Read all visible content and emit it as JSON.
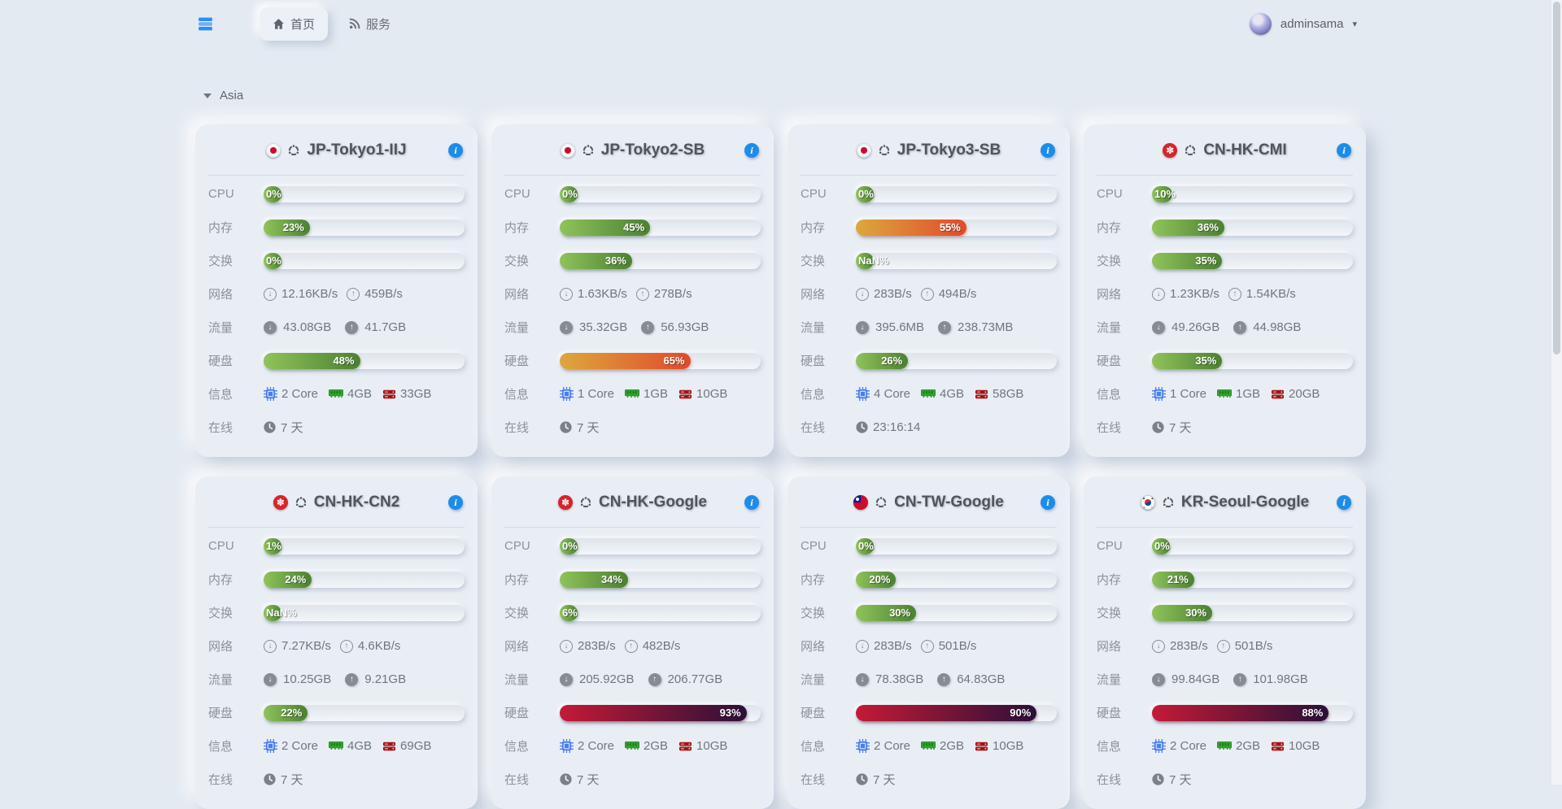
{
  "navbar": {
    "logo_icon": "server-stack-icon",
    "tabs": [
      {
        "label": "首页",
        "icon": "home-icon",
        "active": true
      },
      {
        "label": "服务",
        "icon": "rss-icon",
        "active": false
      }
    ],
    "user": {
      "name": "adminsama",
      "avatar_icon": "avatar",
      "caret_icon": "chevron-down-icon"
    }
  },
  "group": {
    "label": "Asia",
    "collapse_icon": "triangle-down-icon"
  },
  "row_labels": {
    "cpu": "CPU",
    "memory": "内存",
    "swap": "交换",
    "network": "网络",
    "traffic": "流量",
    "disk": "硬盘",
    "info": "信息",
    "online": "在线"
  },
  "colors": {
    "background": "#e4eaf2",
    "card": "#e9eef5",
    "bar_green": [
      "#90c35a",
      "#4c8033"
    ],
    "bar_orange": [
      "#dca83e",
      "#e1492c"
    ],
    "bar_red": [
      "#c41a36",
      "#2b1038"
    ],
    "info_button_blue": "#1d8ce8",
    "cpu_chip_blue": "#4a7df0",
    "ram_icon_green": "#34a832",
    "disk_icon_red": "#a31416",
    "logo_blue": "#2f8ef5"
  },
  "servers": [
    {
      "name": "JP-Tokyo1-IIJ",
      "flag": "jp",
      "os_icon": "ubuntu-icon",
      "cpu": {
        "label": "0%",
        "pct": 0,
        "level": "green"
      },
      "memory": {
        "label": "23%",
        "pct": 23,
        "level": "green"
      },
      "swap": {
        "label": "0%",
        "pct": 0,
        "level": "green"
      },
      "network": {
        "down": "12.16KB/s",
        "up": "459B/s"
      },
      "traffic": {
        "down": "43.08GB",
        "up": "41.7GB"
      },
      "disk": {
        "label": "48%",
        "pct": 48,
        "level": "green"
      },
      "info": {
        "cores": "2 Core",
        "ram": "4GB",
        "disk": "33GB"
      },
      "online": "7 天"
    },
    {
      "name": "JP-Tokyo2-SB",
      "flag": "jp",
      "os_icon": "ubuntu-icon",
      "cpu": {
        "label": "0%",
        "pct": 0,
        "level": "green"
      },
      "memory": {
        "label": "45%",
        "pct": 45,
        "level": "green"
      },
      "swap": {
        "label": "36%",
        "pct": 36,
        "level": "green"
      },
      "network": {
        "down": "1.63KB/s",
        "up": "278B/s"
      },
      "traffic": {
        "down": "35.32GB",
        "up": "56.93GB"
      },
      "disk": {
        "label": "65%",
        "pct": 65,
        "level": "orange"
      },
      "info": {
        "cores": "1 Core",
        "ram": "1GB",
        "disk": "10GB"
      },
      "online": "7 天"
    },
    {
      "name": "JP-Tokyo3-SB",
      "flag": "jp",
      "os_icon": "ubuntu-icon",
      "cpu": {
        "label": "0%",
        "pct": 0,
        "level": "green"
      },
      "memory": {
        "label": "55%",
        "pct": 55,
        "level": "orange"
      },
      "swap": {
        "label": "NaN%",
        "pct": null,
        "level": "green"
      },
      "network": {
        "down": "283B/s",
        "up": "494B/s"
      },
      "traffic": {
        "down": "395.6MB",
        "up": "238.73MB"
      },
      "disk": {
        "label": "26%",
        "pct": 26,
        "level": "green"
      },
      "info": {
        "cores": "4 Core",
        "ram": "4GB",
        "disk": "58GB"
      },
      "online": "23:16:14"
    },
    {
      "name": "CN-HK-CMI",
      "flag": "hk",
      "os_icon": "ubuntu-icon",
      "cpu": {
        "label": "10%",
        "pct": 10,
        "level": "green"
      },
      "memory": {
        "label": "36%",
        "pct": 36,
        "level": "green"
      },
      "swap": {
        "label": "35%",
        "pct": 35,
        "level": "green"
      },
      "network": {
        "down": "1.23KB/s",
        "up": "1.54KB/s"
      },
      "traffic": {
        "down": "49.26GB",
        "up": "44.98GB"
      },
      "disk": {
        "label": "35%",
        "pct": 35,
        "level": "green"
      },
      "info": {
        "cores": "1 Core",
        "ram": "1GB",
        "disk": "20GB"
      },
      "online": "7 天"
    },
    {
      "name": "CN-HK-CN2",
      "flag": "hk",
      "os_icon": "ubuntu-icon",
      "cpu": {
        "label": "1%",
        "pct": 1,
        "level": "green"
      },
      "memory": {
        "label": "24%",
        "pct": 24,
        "level": "green"
      },
      "swap": {
        "label": "NaN%",
        "pct": null,
        "level": "green"
      },
      "network": {
        "down": "7.27KB/s",
        "up": "4.6KB/s"
      },
      "traffic": {
        "down": "10.25GB",
        "up": "9.21GB"
      },
      "disk": {
        "label": "22%",
        "pct": 22,
        "level": "green"
      },
      "info": {
        "cores": "2 Core",
        "ram": "4GB",
        "disk": "69GB"
      },
      "online": "7 天"
    },
    {
      "name": "CN-HK-Google",
      "flag": "hk",
      "os_icon": "ubuntu-icon",
      "cpu": {
        "label": "0%",
        "pct": 0,
        "level": "green"
      },
      "memory": {
        "label": "34%",
        "pct": 34,
        "level": "green"
      },
      "swap": {
        "label": "6%",
        "pct": 6,
        "level": "green"
      },
      "network": {
        "down": "283B/s",
        "up": "482B/s"
      },
      "traffic": {
        "down": "205.92GB",
        "up": "206.77GB"
      },
      "disk": {
        "label": "93%",
        "pct": 93,
        "level": "red"
      },
      "info": {
        "cores": "2 Core",
        "ram": "2GB",
        "disk": "10GB"
      },
      "online": "7 天"
    },
    {
      "name": "CN-TW-Google",
      "flag": "tw",
      "os_icon": "ubuntu-icon",
      "cpu": {
        "label": "0%",
        "pct": 0,
        "level": "green"
      },
      "memory": {
        "label": "20%",
        "pct": 20,
        "level": "green"
      },
      "swap": {
        "label": "30%",
        "pct": 30,
        "level": "green"
      },
      "network": {
        "down": "283B/s",
        "up": "501B/s"
      },
      "traffic": {
        "down": "78.38GB",
        "up": "64.83GB"
      },
      "disk": {
        "label": "90%",
        "pct": 90,
        "level": "red"
      },
      "info": {
        "cores": "2 Core",
        "ram": "2GB",
        "disk": "10GB"
      },
      "online": "7 天"
    },
    {
      "name": "KR-Seoul-Google",
      "flag": "kr",
      "os_icon": "ubuntu-icon",
      "cpu": {
        "label": "0%",
        "pct": 0,
        "level": "green"
      },
      "memory": {
        "label": "21%",
        "pct": 21,
        "level": "green"
      },
      "swap": {
        "label": "30%",
        "pct": 30,
        "level": "green"
      },
      "network": {
        "down": "283B/s",
        "up": "501B/s"
      },
      "traffic": {
        "down": "99.84GB",
        "up": "101.98GB"
      },
      "disk": {
        "label": "88%",
        "pct": 88,
        "level": "red"
      },
      "info": {
        "cores": "2 Core",
        "ram": "2GB",
        "disk": "10GB"
      },
      "online": "7 天"
    }
  ]
}
